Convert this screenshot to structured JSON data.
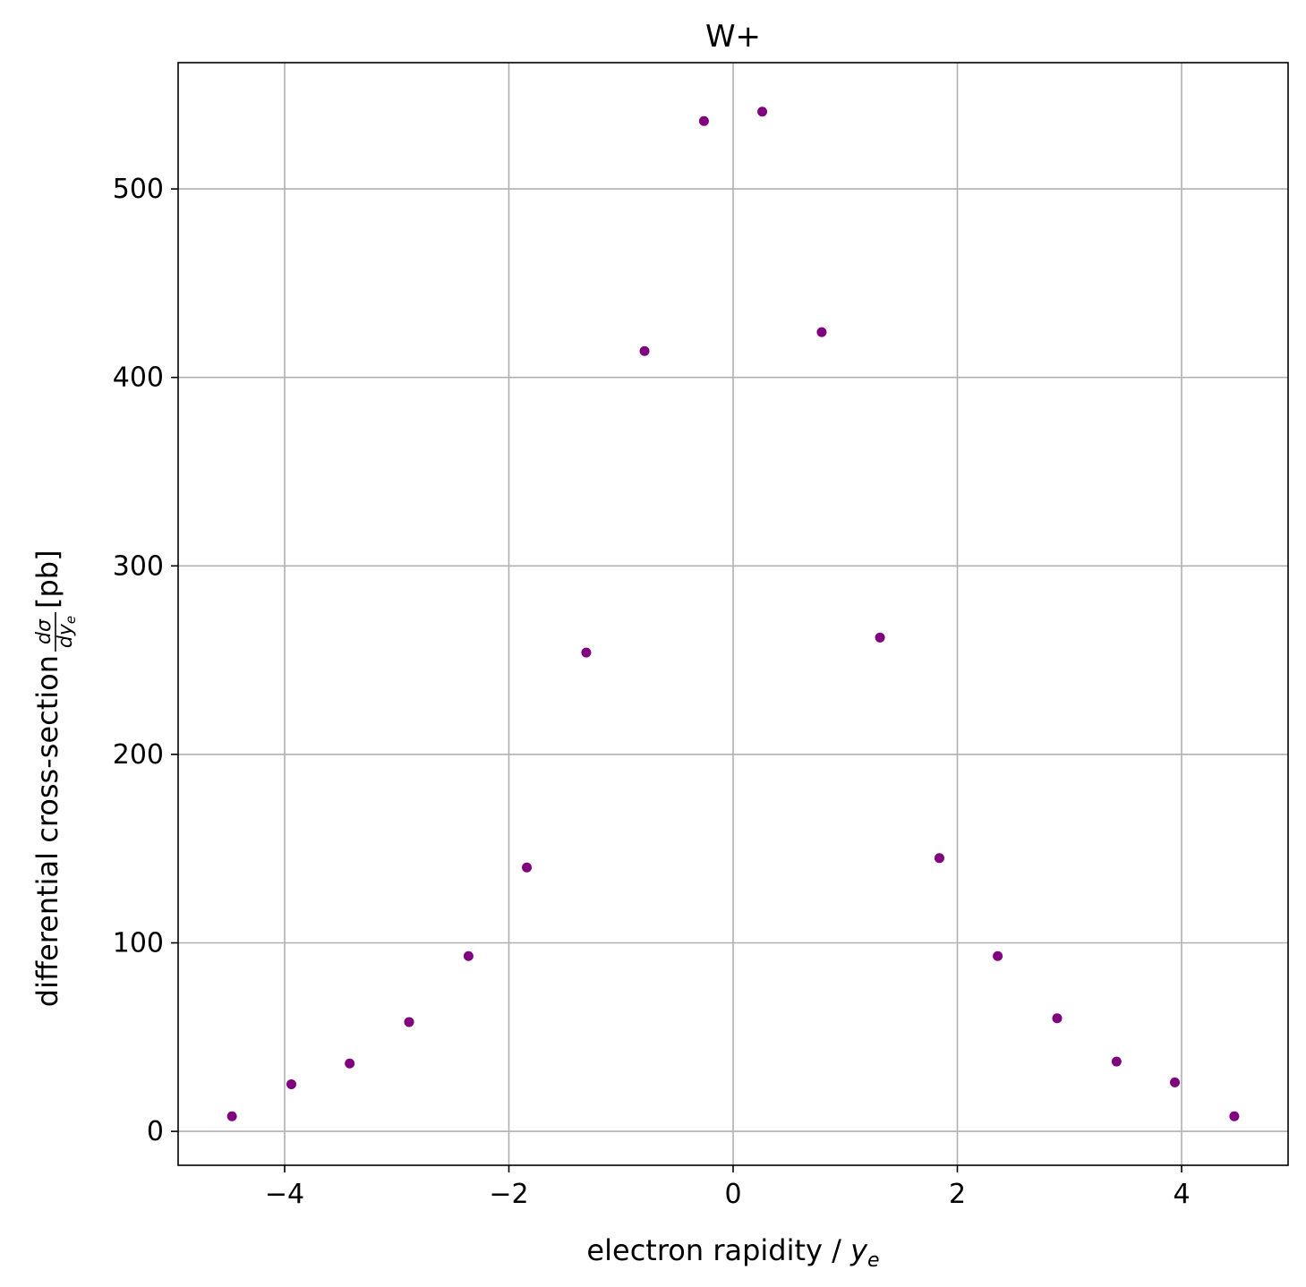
{
  "chart_data": {
    "type": "scatter",
    "title": "W+",
    "xlabel": {
      "prefix": "electron rapidity / ",
      "symbol": "y",
      "subscript": "e"
    },
    "ylabel": {
      "prefix": "differential cross-section ",
      "fraction_numerator": "dσ",
      "fraction_denominator": "dy",
      "fraction_denominator_subscript": "e",
      "suffix": " [pb]"
    },
    "xlim": [
      -4.95,
      4.95
    ],
    "ylim": [
      -18,
      567
    ],
    "xticks": [
      {
        "value": -4,
        "label": "−4"
      },
      {
        "value": -2,
        "label": "−2"
      },
      {
        "value": 0,
        "label": "0"
      },
      {
        "value": 2,
        "label": "2"
      },
      {
        "value": 4,
        "label": "4"
      }
    ],
    "yticks": [
      {
        "value": 0,
        "label": "0"
      },
      {
        "value": 100,
        "label": "100"
      },
      {
        "value": 200,
        "label": "200"
      },
      {
        "value": 300,
        "label": "300"
      },
      {
        "value": 400,
        "label": "400"
      },
      {
        "value": 500,
        "label": "500"
      }
    ],
    "grid": true,
    "marker_color": "#800080",
    "series": [
      {
        "x": [
          -4.47,
          -3.94,
          -3.42,
          -2.89,
          -2.36,
          -1.84,
          -1.31,
          -0.79,
          -0.26,
          0.26,
          0.79,
          1.31,
          1.84,
          2.36,
          2.89,
          3.42,
          3.94,
          4.47
        ],
        "y": [
          8,
          25,
          36,
          58,
          93,
          140,
          254,
          414,
          536,
          541,
          424,
          262,
          145,
          93,
          60,
          37,
          26,
          8
        ]
      }
    ]
  }
}
